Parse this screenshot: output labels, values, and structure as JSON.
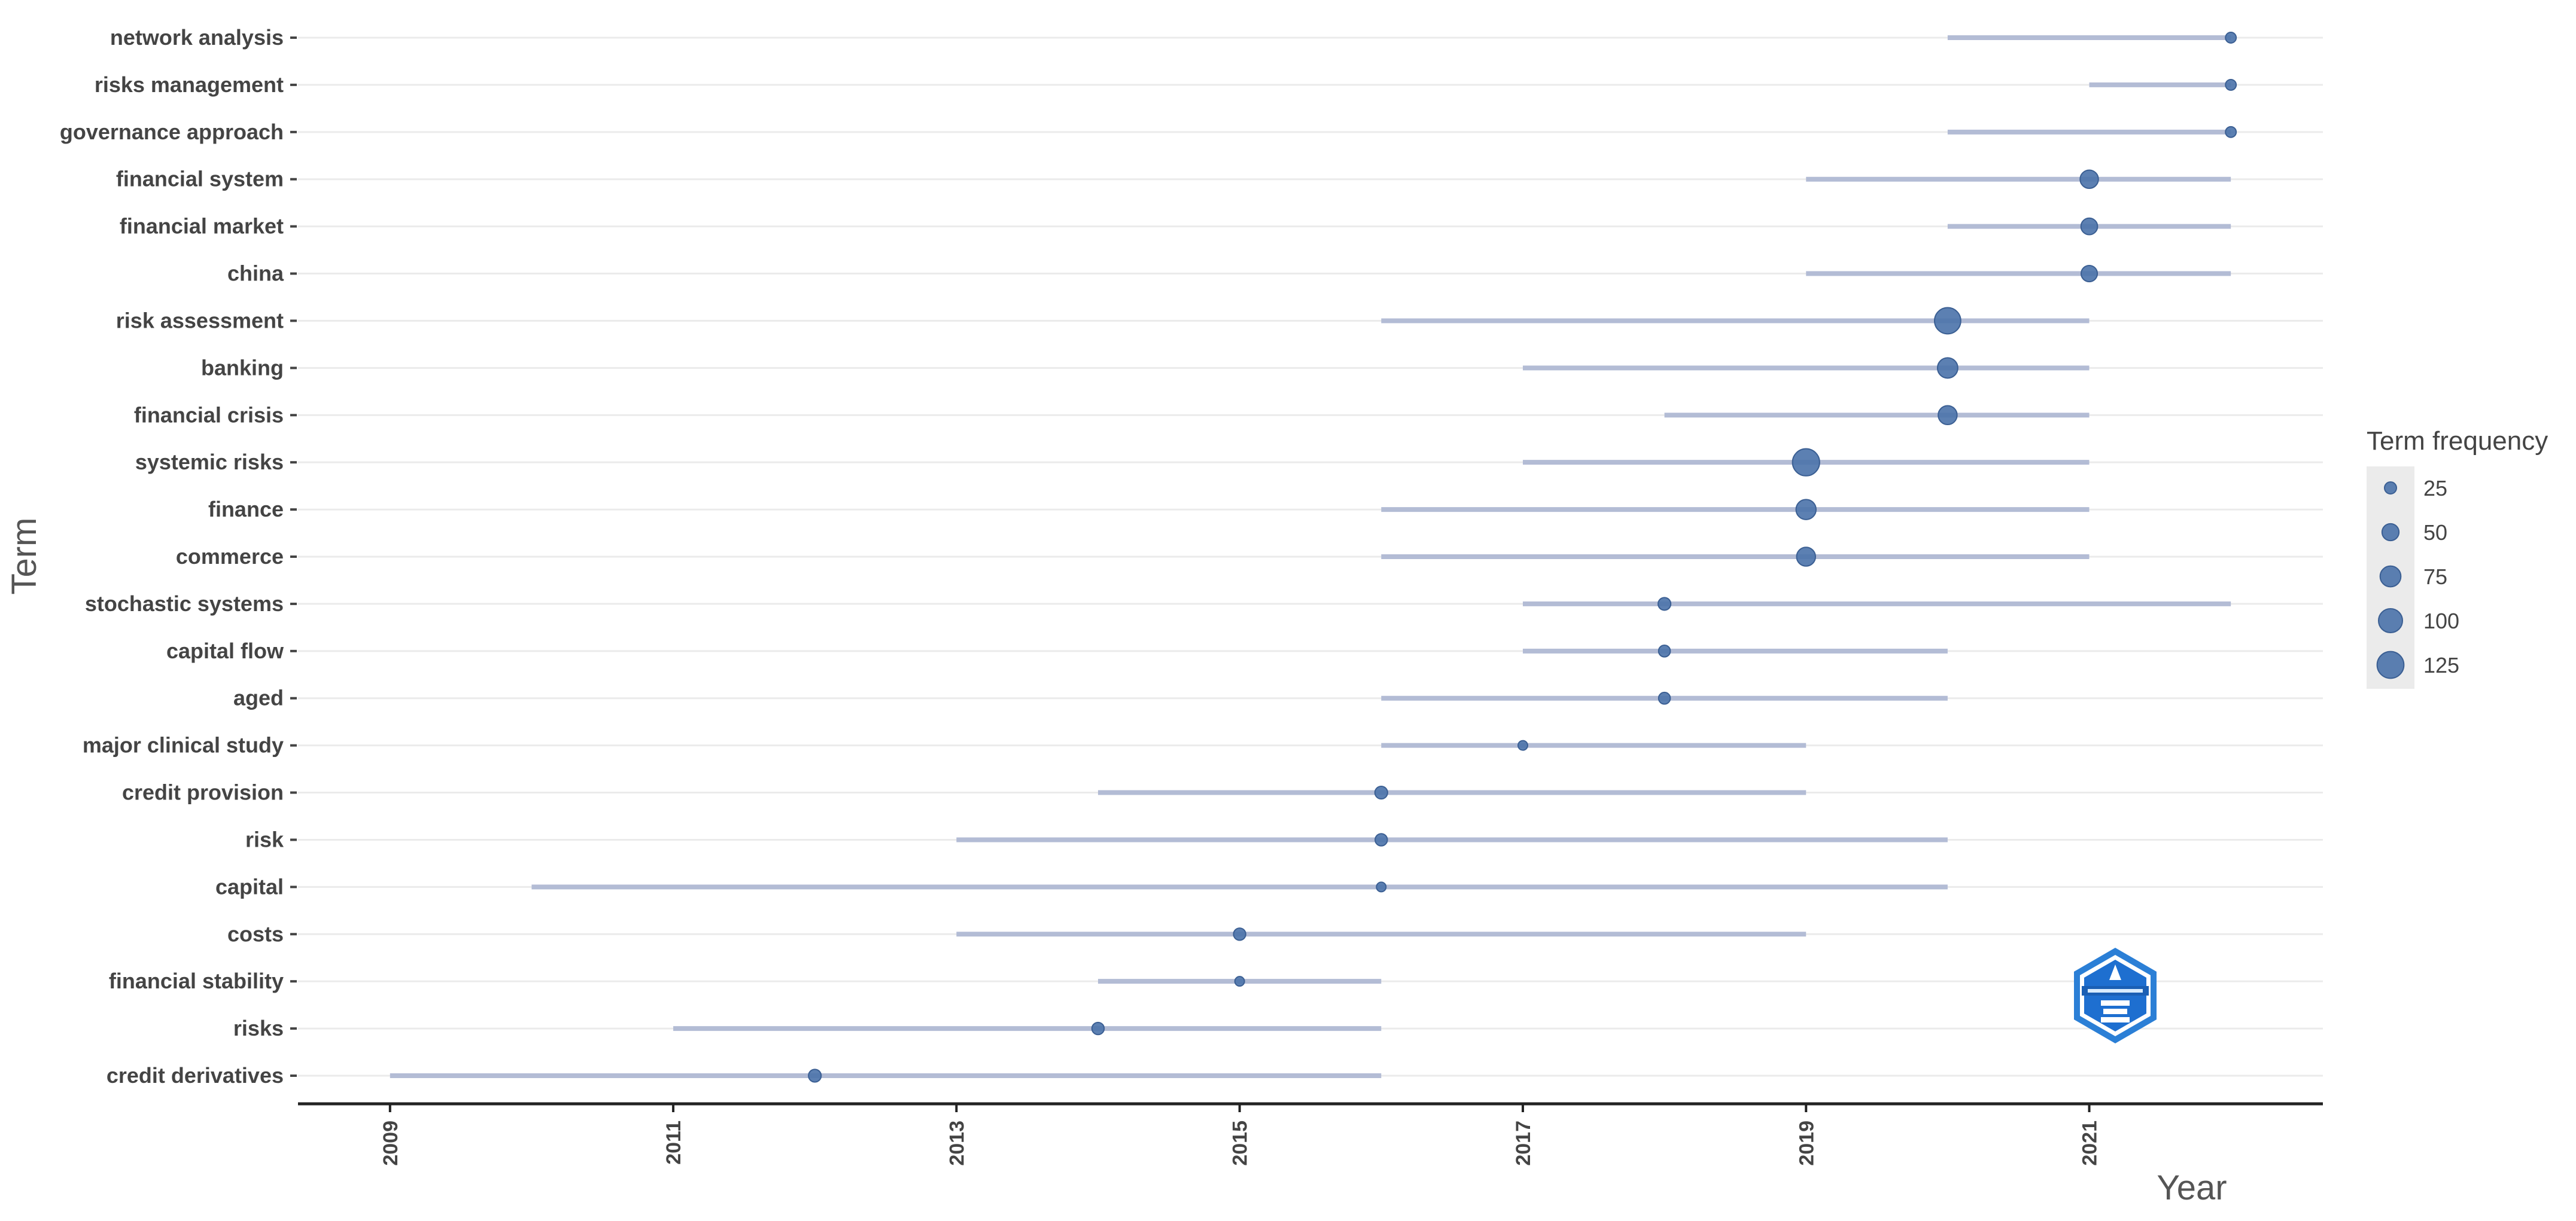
{
  "chart_data": {
    "type": "scatter",
    "title": "",
    "xlabel": "Year",
    "ylabel": "Term",
    "x_ticks": [
      2009,
      2011,
      2013,
      2015,
      2017,
      2019,
      2021
    ],
    "xlim": [
      2008.35,
      2022.65
    ],
    "grid": "horizontal",
    "legend": {
      "title": "Term frequency",
      "placement": "right",
      "sizes": [
        25,
        50,
        75,
        100,
        125
      ],
      "labels": [
        "25",
        "50",
        "75",
        "100",
        "125"
      ]
    },
    "point_color": "#4a72aa",
    "range_color": "#b3bcd5",
    "terms": [
      {
        "term": "network analysis",
        "start": 2020,
        "end": 2022,
        "median": 2022,
        "freq": 20
      },
      {
        "term": "risks management",
        "start": 2021,
        "end": 2022,
        "median": 2022,
        "freq": 20
      },
      {
        "term": "governance approach",
        "start": 2020,
        "end": 2022,
        "median": 2022,
        "freq": 20
      },
      {
        "term": "financial system",
        "start": 2019,
        "end": 2022,
        "median": 2021,
        "freq": 58
      },
      {
        "term": "financial market",
        "start": 2020,
        "end": 2022,
        "median": 2021,
        "freq": 48
      },
      {
        "term": "china",
        "start": 2019,
        "end": 2022,
        "median": 2021,
        "freq": 46
      },
      {
        "term": "risk assessment",
        "start": 2016,
        "end": 2021,
        "median": 2020,
        "freq": 120
      },
      {
        "term": "banking",
        "start": 2017,
        "end": 2021,
        "median": 2020,
        "freq": 72
      },
      {
        "term": "financial crisis",
        "start": 2018,
        "end": 2021,
        "median": 2020,
        "freq": 62
      },
      {
        "term": "systemic risks",
        "start": 2017,
        "end": 2021,
        "median": 2019,
        "freq": 128
      },
      {
        "term": "finance",
        "start": 2016,
        "end": 2021,
        "median": 2019,
        "freq": 70
      },
      {
        "term": "commerce",
        "start": 2016,
        "end": 2021,
        "median": 2019,
        "freq": 62
      },
      {
        "term": "stochastic systems",
        "start": 2017,
        "end": 2022,
        "median": 2018,
        "freq": 28
      },
      {
        "term": "capital flow",
        "start": 2017,
        "end": 2020,
        "median": 2018,
        "freq": 24
      },
      {
        "term": "aged",
        "start": 2016,
        "end": 2020,
        "median": 2018,
        "freq": 24
      },
      {
        "term": "major clinical study",
        "start": 2016,
        "end": 2019,
        "median": 2017,
        "freq": 16
      },
      {
        "term": "credit provision",
        "start": 2014,
        "end": 2019,
        "median": 2016,
        "freq": 28
      },
      {
        "term": "risk",
        "start": 2013,
        "end": 2020,
        "median": 2016,
        "freq": 26
      },
      {
        "term": "capital",
        "start": 2010,
        "end": 2020,
        "median": 2016,
        "freq": 16
      },
      {
        "term": "costs",
        "start": 2013,
        "end": 2019,
        "median": 2015,
        "freq": 26
      },
      {
        "term": "financial stability",
        "start": 2014,
        "end": 2016,
        "median": 2015,
        "freq": 16
      },
      {
        "term": "risks",
        "start": 2011,
        "end": 2016,
        "median": 2014,
        "freq": 26
      },
      {
        "term": "credit derivatives",
        "start": 2009,
        "end": 2016,
        "median": 2012,
        "freq": 28
      }
    ]
  }
}
